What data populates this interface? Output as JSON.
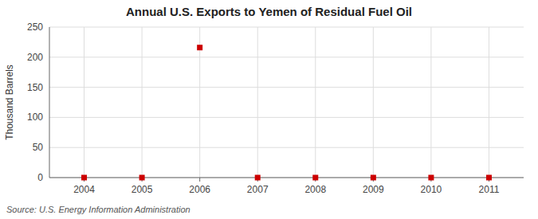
{
  "chart_data": {
    "type": "scatter",
    "title": "Annual U.S. Exports to Yemen of Residual Fuel Oil",
    "y_label": "Thousand Barrels",
    "source": "Source: U.S. Energy Information Administration",
    "x": [
      2004,
      2005,
      2006,
      2007,
      2008,
      2009,
      2010,
      2011
    ],
    "values": [
      0,
      0,
      216,
      0,
      0,
      0,
      0,
      0
    ],
    "color": "#cc0000",
    "marker": "square",
    "xlim": [
      2003.4,
      2011.6
    ],
    "xticks": [
      2004,
      2005,
      2006,
      2007,
      2008,
      2009,
      2010,
      2011
    ],
    "ylim": [
      0,
      250
    ],
    "yticks": [
      0,
      50,
      100,
      150,
      200,
      250
    ],
    "grid": true
  }
}
